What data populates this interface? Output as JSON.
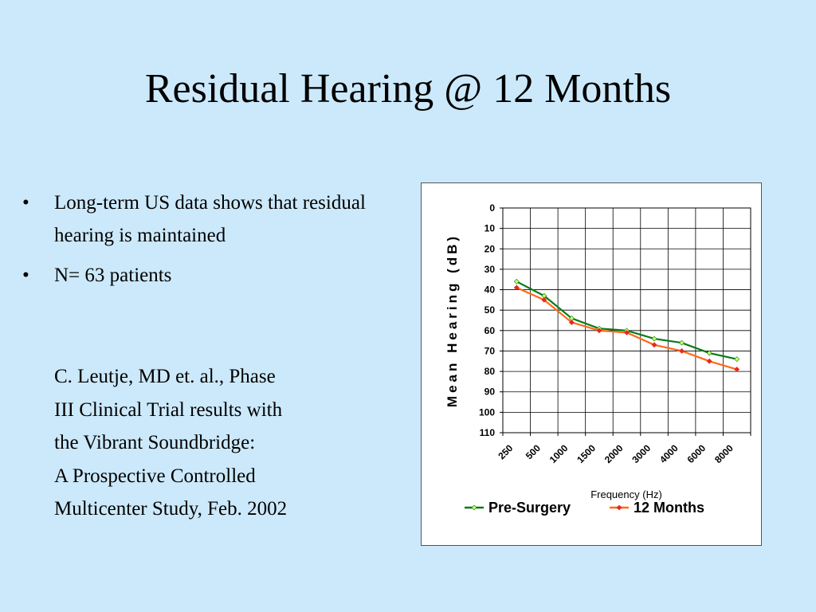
{
  "slide": {
    "title": "Residual Hearing @ 12 Months",
    "bullets": [
      "Long-term US data shows that residual hearing is maintained",
      "N= 63 patients"
    ],
    "citation_lines": [
      "C. Leutje, MD et. al., Phase",
      "III Clinical Trial results with",
      "the Vibrant Soundbridge:",
      "A Prospective Controlled",
      "Multicenter Study, Feb. 2002"
    ]
  },
  "chart_data": {
    "type": "line",
    "title": "",
    "xlabel": "Frequency (Hz)",
    "ylabel": "Mean Hearing (dB)",
    "categories": [
      "250",
      "500",
      "1000",
      "1500",
      "2000",
      "3000",
      "4000",
      "6000",
      "8000"
    ],
    "ylim": [
      0,
      110
    ],
    "y_inverted": true,
    "y_ticks": [
      0,
      10,
      20,
      30,
      40,
      50,
      60,
      70,
      80,
      90,
      100,
      110
    ],
    "grid": true,
    "legend_position": "bottom",
    "series": [
      {
        "name": "Pre-Surgery",
        "color": "#0a7a1a",
        "marker_color": "#ccff66",
        "values": [
          36,
          43,
          54,
          59,
          60,
          64,
          66,
          71,
          74
        ]
      },
      {
        "name": "12 Months",
        "color": "#ff6a1a",
        "marker_color": "#e8281e",
        "values": [
          39,
          45,
          56,
          60,
          61,
          67,
          70,
          75,
          79
        ]
      }
    ]
  }
}
